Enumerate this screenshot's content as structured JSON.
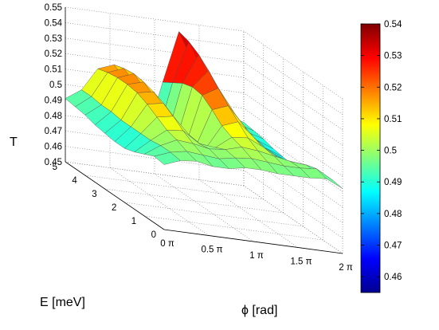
{
  "chart_data": {
    "type": "surface",
    "title": "",
    "xlabel": "ϕ [rad]",
    "ylabel": "E [meV]",
    "zlabel": "T",
    "x_ticks": [
      "0 π",
      "0.5 π",
      "1 π",
      "1.5 π",
      "2 π"
    ],
    "y_ticks": [
      "0",
      "1",
      "2",
      "3",
      "4",
      "5"
    ],
    "z_ticks": [
      "0.45",
      "0.46",
      "0.47",
      "0.48",
      "0.49",
      "0.5",
      "0.51",
      "0.52",
      "0.53",
      "0.54",
      "0.55"
    ],
    "xlim": [
      0,
      2
    ],
    "ylim": [
      0,
      5
    ],
    "zlim": [
      0.45,
      0.55
    ],
    "x_unit": "π rad",
    "grid": true,
    "colormap": "jet",
    "colorbar": {
      "range": [
        0.455,
        0.54
      ],
      "ticks": [
        "0.46",
        "0.47",
        "0.48",
        "0.49",
        "0.5",
        "0.51",
        "0.52",
        "0.53",
        "0.54"
      ]
    },
    "phi": [
      0,
      0.1818,
      0.3636,
      0.5455,
      0.7273,
      0.9091,
      1.0909,
      1.2727,
      1.4545,
      1.6364,
      1.8182,
      2
    ],
    "energy": [
      0,
      0.5,
      1,
      1.5,
      2,
      2.5,
      3,
      3.5,
      4,
      4.5,
      5
    ],
    "T": [
      [
        0.492,
        0.496,
        0.497,
        0.495,
        0.495,
        0.497,
        0.497,
        0.496,
        0.496,
        0.496,
        0.497,
        0.492
      ],
      [
        0.493,
        0.497,
        0.499,
        0.498,
        0.497,
        0.499,
        0.5,
        0.499,
        0.498,
        0.498,
        0.499,
        0.493
      ],
      [
        0.49,
        0.497,
        0.502,
        0.501,
        0.499,
        0.5,
        0.503,
        0.502,
        0.5,
        0.498,
        0.497,
        0.49
      ],
      [
        0.487,
        0.496,
        0.504,
        0.505,
        0.498,
        0.497,
        0.505,
        0.506,
        0.501,
        0.495,
        0.494,
        0.487
      ],
      [
        0.485,
        0.496,
        0.508,
        0.51,
        0.499,
        0.492,
        0.508,
        0.512,
        0.503,
        0.492,
        0.491,
        0.485
      ],
      [
        0.485,
        0.496,
        0.512,
        0.514,
        0.501,
        0.489,
        0.514,
        0.518,
        0.506,
        0.49,
        0.49,
        0.485
      ],
      [
        0.486,
        0.496,
        0.515,
        0.517,
        0.504,
        0.486,
        0.519,
        0.525,
        0.51,
        0.489,
        0.49,
        0.486
      ],
      [
        0.487,
        0.497,
        0.516,
        0.519,
        0.506,
        0.484,
        0.52,
        0.532,
        0.514,
        0.49,
        0.491,
        0.487
      ],
      [
        0.489,
        0.497,
        0.516,
        0.52,
        0.507,
        0.48,
        0.518,
        0.538,
        0.518,
        0.49,
        0.492,
        0.489
      ],
      [
        0.49,
        0.498,
        0.515,
        0.519,
        0.506,
        0.476,
        0.514,
        0.542,
        0.521,
        0.491,
        0.493,
        0.49
      ],
      [
        0.491,
        0.498,
        0.513,
        0.517,
        0.505,
        0.473,
        0.51,
        0.544,
        0.523,
        0.492,
        0.494,
        0.491
      ]
    ]
  }
}
